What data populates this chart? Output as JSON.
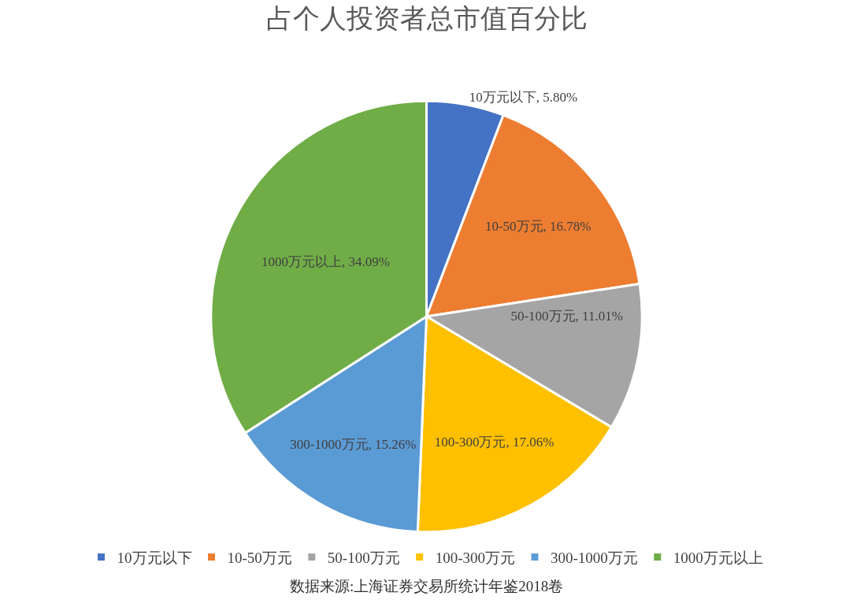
{
  "chart_data": {
    "type": "pie",
    "title": "占个人投资者总市值百分比",
    "categories": [
      "10万元以下",
      "10-50万元",
      "50-100万元",
      "100-300万元",
      "300-1000万元",
      "1000万元以上"
    ],
    "values": [
      5.8,
      16.78,
      11.01,
      17.06,
      15.26,
      34.09
    ],
    "colors": [
      "#4472c4",
      "#ed7d31",
      "#a5a5a5",
      "#ffc000",
      "#5b9bd5",
      "#70ad47"
    ],
    "value_labels": [
      "10万元以下, 5.80%",
      "10-50万元, 16.78%",
      "50-100万元, 11.01%",
      "100-300万元, 17.06%",
      "300-1000万元, 15.26%",
      "1000万元以上, 34.09%"
    ],
    "legend": "bottom",
    "annotations": [
      "数据来源:上海证券交易所统计年鉴2018卷"
    ]
  }
}
